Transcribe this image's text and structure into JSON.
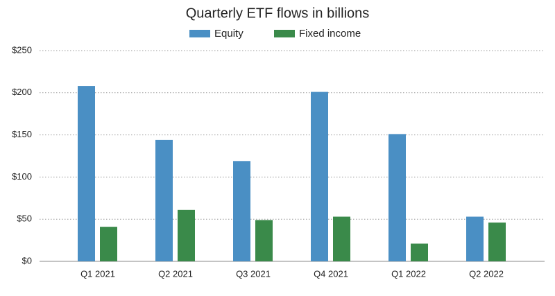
{
  "chart_data": {
    "type": "bar",
    "title": "Quarterly ETF flows in billions",
    "categories": [
      "Q1 2021",
      "Q2 2021",
      "Q3 2021",
      "Q4 2021",
      "Q1 2022",
      "Q2 2022"
    ],
    "series": [
      {
        "name": "Equity",
        "color": "#4a8fc4",
        "values": [
          208,
          144,
          119,
          201,
          151,
          53
        ]
      },
      {
        "name": "Fixed income",
        "color": "#3a8a4a",
        "values": [
          41,
          61,
          49,
          53,
          21,
          46
        ]
      }
    ],
    "ylim": [
      0,
      250
    ],
    "yticks": [
      {
        "value": 0,
        "label": "$0"
      },
      {
        "value": 50,
        "label": "$50"
      },
      {
        "value": 100,
        "label": "$100"
      },
      {
        "value": 150,
        "label": "$150"
      },
      {
        "value": 200,
        "label": "$200"
      },
      {
        "value": 250,
        "label": "$250"
      }
    ],
    "grid": true,
    "legend": "top"
  }
}
